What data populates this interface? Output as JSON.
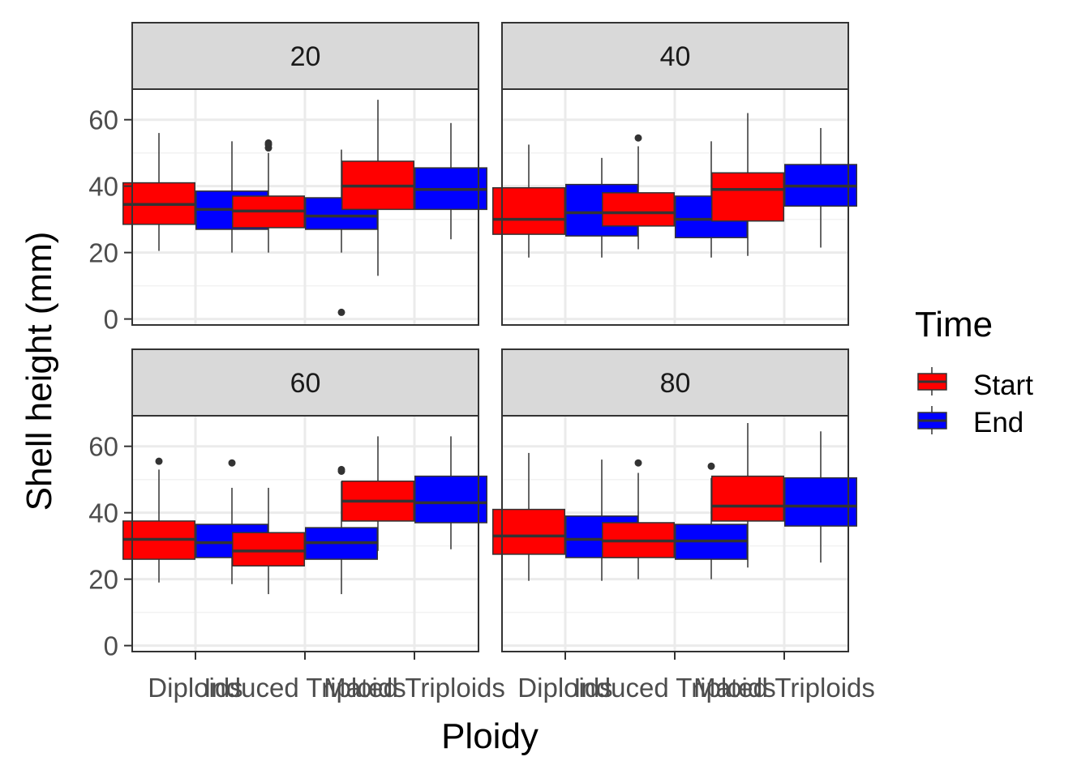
{
  "chart_data": {
    "type": "boxplot",
    "facet_by": "density",
    "facets": [
      "20",
      "40",
      "60",
      "80"
    ],
    "categories": [
      "Diploids",
      "Induced Triploids",
      "Mated Triploids"
    ],
    "xlabel": "Ploidy",
    "ylabel": "Shell height (mm)",
    "ylim": [
      0,
      70
    ],
    "yticks": [
      0,
      20,
      40,
      60
    ],
    "grid": true,
    "legend": {
      "title": "Time",
      "position": "right",
      "items": [
        {
          "label": "Start",
          "color": "#ff0000"
        },
        {
          "label": "End",
          "color": "#0000ff"
        }
      ]
    },
    "panels": [
      {
        "facet": "20",
        "groups": [
          {
            "category": "Diploids",
            "time": "Start",
            "whisker_low": 20.5,
            "q1": 28.5,
            "median": 34.5,
            "q3": 41,
            "whisker_high": 56,
            "outliers": []
          },
          {
            "category": "Diploids",
            "time": "End",
            "whisker_low": 20,
            "q1": 27,
            "median": 33,
            "q3": 38.5,
            "whisker_high": 53.5,
            "outliers": []
          },
          {
            "category": "Induced Triploids",
            "time": "Start",
            "whisker_low": 20,
            "q1": 27.5,
            "median": 32.5,
            "q3": 37,
            "whisker_high": 50,
            "outliers": [
              51.5,
              52.5,
              53
            ]
          },
          {
            "category": "Induced Triploids",
            "time": "End",
            "whisker_low": 20,
            "q1": 27,
            "median": 31,
            "q3": 36.5,
            "whisker_high": 51,
            "outliers": [
              2
            ]
          },
          {
            "category": "Mated Triploids",
            "time": "Start",
            "whisker_low": 13,
            "q1": 33,
            "median": 40,
            "q3": 47.5,
            "whisker_high": 66,
            "outliers": []
          },
          {
            "category": "Mated Triploids",
            "time": "End",
            "whisker_low": 24,
            "q1": 33,
            "median": 39,
            "q3": 45.5,
            "whisker_high": 59,
            "outliers": []
          }
        ]
      },
      {
        "facet": "40",
        "groups": [
          {
            "category": "Diploids",
            "time": "Start",
            "whisker_low": 18.5,
            "q1": 25.5,
            "median": 30,
            "q3": 39.5,
            "whisker_high": 52.5,
            "outliers": []
          },
          {
            "category": "Diploids",
            "time": "End",
            "whisker_low": 18.5,
            "q1": 25,
            "median": 32,
            "q3": 40.5,
            "whisker_high": 48.5,
            "outliers": []
          },
          {
            "category": "Induced Triploids",
            "time": "Start",
            "whisker_low": 21,
            "q1": 28,
            "median": 32,
            "q3": 38,
            "whisker_high": 52,
            "outliers": [
              54.5
            ]
          },
          {
            "category": "Induced Triploids",
            "time": "End",
            "whisker_low": 18.5,
            "q1": 24.5,
            "median": 30,
            "q3": 37,
            "whisker_high": 53.5,
            "outliers": []
          },
          {
            "category": "Mated Triploids",
            "time": "Start",
            "whisker_low": 19,
            "q1": 29.5,
            "median": 39,
            "q3": 44,
            "whisker_high": 62,
            "outliers": []
          },
          {
            "category": "Mated Triploids",
            "time": "End",
            "whisker_low": 21.5,
            "q1": 34,
            "median": 40,
            "q3": 46.5,
            "whisker_high": 57.5,
            "outliers": []
          }
        ]
      },
      {
        "facet": "60",
        "groups": [
          {
            "category": "Diploids",
            "time": "Start",
            "whisker_low": 19,
            "q1": 26,
            "median": 32,
            "q3": 37.5,
            "whisker_high": 53,
            "outliers": [
              55.5
            ]
          },
          {
            "category": "Diploids",
            "time": "End",
            "whisker_low": 18.5,
            "q1": 26.5,
            "median": 31,
            "q3": 36.5,
            "whisker_high": 47.5,
            "outliers": [
              55
            ]
          },
          {
            "category": "Induced Triploids",
            "time": "Start",
            "whisker_low": 15.5,
            "q1": 24,
            "median": 28.5,
            "q3": 34,
            "whisker_high": 47.5,
            "outliers": []
          },
          {
            "category": "Induced Triploids",
            "time": "End",
            "whisker_low": 15.5,
            "q1": 26,
            "median": 31,
            "q3": 35.5,
            "whisker_high": 49.5,
            "outliers": [
              52.5,
              53
            ]
          },
          {
            "category": "Mated Triploids",
            "time": "Start",
            "whisker_low": 28.5,
            "q1": 37.5,
            "median": 43.5,
            "q3": 49.5,
            "whisker_high": 63,
            "outliers": []
          },
          {
            "category": "Mated Triploids",
            "time": "End",
            "whisker_low": 29,
            "q1": 37,
            "median": 43,
            "q3": 51,
            "whisker_high": 63,
            "outliers": []
          }
        ]
      },
      {
        "facet": "80",
        "groups": [
          {
            "category": "Diploids",
            "time": "Start",
            "whisker_low": 19.5,
            "q1": 27.5,
            "median": 33,
            "q3": 41,
            "whisker_high": 58,
            "outliers": []
          },
          {
            "category": "Diploids",
            "time": "End",
            "whisker_low": 19.5,
            "q1": 26.5,
            "median": 32,
            "q3": 39,
            "whisker_high": 56,
            "outliers": []
          },
          {
            "category": "Induced Triploids",
            "time": "Start",
            "whisker_low": 20,
            "q1": 26.5,
            "median": 31.5,
            "q3": 37,
            "whisker_high": 52,
            "outliers": [
              55
            ]
          },
          {
            "category": "Induced Triploids",
            "time": "End",
            "whisker_low": 20,
            "q1": 26,
            "median": 31.5,
            "q3": 36.5,
            "whisker_high": 50.5,
            "outliers": [
              54
            ]
          },
          {
            "category": "Mated Triploids",
            "time": "Start",
            "whisker_low": 23.5,
            "q1": 37.5,
            "median": 42,
            "q3": 51,
            "whisker_high": 67,
            "outliers": []
          },
          {
            "category": "Mated Triploids",
            "time": "End",
            "whisker_low": 25,
            "q1": 36,
            "median": 42,
            "q3": 50.5,
            "whisker_high": 64.5,
            "outliers": []
          }
        ]
      }
    ]
  }
}
